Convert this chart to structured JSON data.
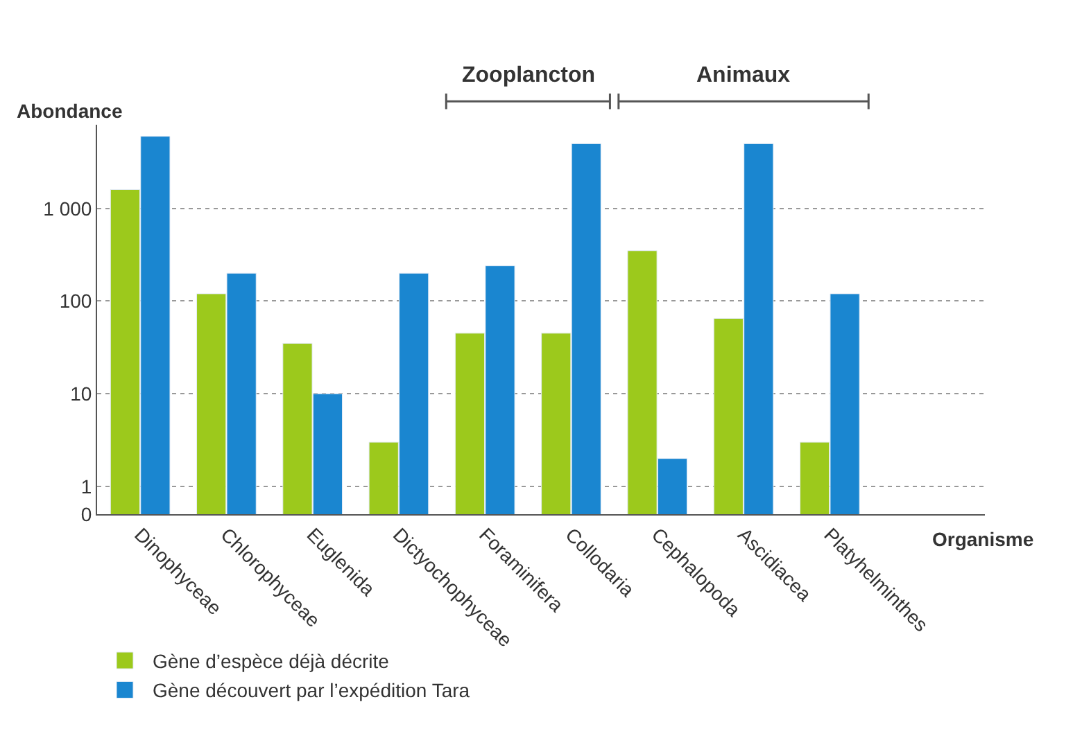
{
  "chart_data": {
    "type": "bar",
    "ylabel": "Abondance",
    "xlabel": "Organisme",
    "log": "y",
    "categories": [
      "Dinophyceae",
      "Chlorophyceae",
      "Euglenida",
      "Dictyochophyceae",
      "Foraminifera",
      "Collodaria",
      "Cephalopoda",
      "Ascidiacea",
      "Platyhelminthes"
    ],
    "series": [
      {
        "name": "Gène d’espèce déjà décrite",
        "color": "#9cc91c",
        "values": [
          1600,
          120,
          35,
          3,
          45,
          45,
          350,
          65,
          3
        ]
      },
      {
        "name": "Gène découvert par l’expédition Tara",
        "color": "#1a86d0",
        "values": [
          6000,
          200,
          10,
          200,
          240,
          5000,
          2,
          5000,
          120
        ]
      }
    ],
    "ylim": [
      0,
      8000
    ],
    "yticks": [
      0,
      1,
      10,
      100,
      {
        "value": 1000,
        "label": "1 000"
      }
    ],
    "grid": "y",
    "legend": "bottom",
    "annotations": [
      "Zooplancton",
      "Animaux"
    ]
  }
}
